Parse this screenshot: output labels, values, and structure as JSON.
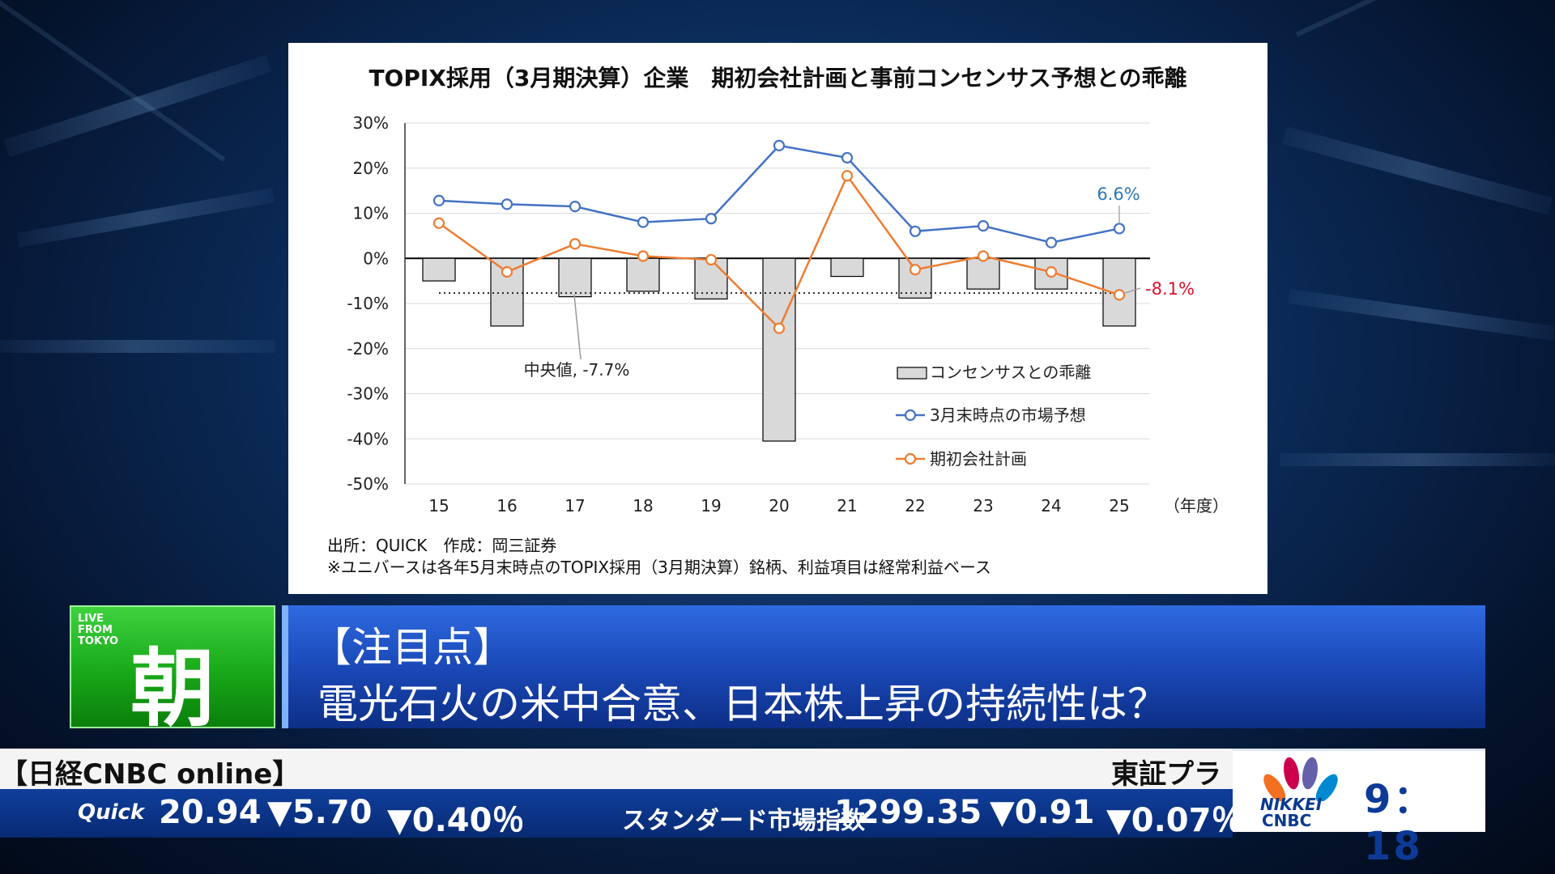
{
  "chart_data": {
    "type": "bar",
    "title": "TOPIX採用（3月期決算）企業　期初会社計画と事前コンセンサス予想との乖離",
    "categories": [
      "15",
      "16",
      "17",
      "18",
      "19",
      "20",
      "21",
      "22",
      "23",
      "24",
      "25"
    ],
    "x_unit_label": "（年度）",
    "ylim": [
      -50,
      30
    ],
    "y_ticks": [
      "30%",
      "20%",
      "10%",
      "0%",
      "-10%",
      "-20%",
      "-30%",
      "-40%",
      "-50%"
    ],
    "series": [
      {
        "name": "コンセンサスとの乖離",
        "type": "bar",
        "color": "#d9d9d9",
        "values": [
          -5,
          -15,
          -8.5,
          -7.3,
          -9,
          -40.5,
          -4,
          -8.8,
          -6.8,
          -6.8,
          -15
        ]
      },
      {
        "name": "3月末時点の市場予想",
        "type": "line",
        "color": "#4472c4",
        "values": [
          12.8,
          12,
          11.5,
          8,
          8.8,
          25,
          22.3,
          6,
          7.2,
          3.5,
          6.6
        ]
      },
      {
        "name": "期初会社計画",
        "type": "line",
        "color": "#ed7d31",
        "values": [
          7.8,
          -3,
          3.2,
          0.5,
          -0.3,
          -15.5,
          18.3,
          -2.5,
          0.5,
          -3,
          -8.1
        ]
      }
    ],
    "median": {
      "value": -7.7,
      "label": "中央値, -7.7%"
    },
    "annotations": [
      {
        "text": "6.6%",
        "color": "#2e75b6"
      },
      {
        "text": "-8.1%",
        "color": "#e0102a"
      }
    ],
    "legend": "right-bottom",
    "grid": true
  },
  "notes": {
    "source": "出所：QUICK　作成：岡三証券",
    "universe": "※ユニバースは各年5月末時点のTOPIX採用（3月期決算）銘柄、利益項目は経常利益ベース"
  },
  "program": {
    "live_label": "LIVE\nFROM\nTOKYO",
    "name": "朝"
  },
  "headline": {
    "tag": "【注目点】",
    "text": "電光石火の米中合意、日本株上昇の持続性は？"
  },
  "ticker": {
    "top_left": "【日経CNBC online】",
    "top_right": "東証プラ",
    "quick_logo": "Quick",
    "items": [
      {
        "text": "20.94"
      },
      {
        "text": "▼5.70"
      },
      {
        "text": "▼0.40％"
      },
      {
        "text": "スタンダード市場指数"
      },
      {
        "text": "1299.35"
      },
      {
        "text": "▼0.91"
      },
      {
        "text": "▼0.07％"
      }
    ]
  },
  "clock": {
    "nikkei": "NIKKEI",
    "cnbc": "CNBC",
    "time": "9：18"
  },
  "colors": {
    "bar": "#d9d9d9",
    "market_line": "#4472c4",
    "plan_line": "#ed7d31",
    "program_green": "#18a818",
    "headline_blue": "#1a49b8"
  }
}
